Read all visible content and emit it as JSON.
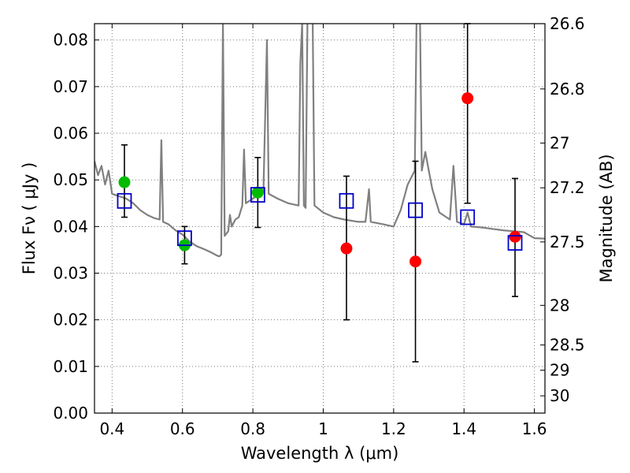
{
  "chart_data": {
    "type": "scatter",
    "title": "",
    "xlabel": "Wavelength  λ (μm)",
    "ylabel": "Flux  Fν  ( μJy )",
    "y2label": "Magnitude (AB)",
    "xlim": [
      0.35,
      1.63
    ],
    "ylim": [
      0.0,
      0.0835
    ],
    "grid": true,
    "x_ticks": [
      0.4,
      0.6,
      0.8,
      1.0,
      1.2,
      1.4,
      1.6
    ],
    "x_tick_labels": [
      "0.4",
      "0.6",
      "0.8",
      "1",
      "1.2",
      "1.4",
      "1.6"
    ],
    "y_ticks": [
      0.0,
      0.01,
      0.02,
      0.03,
      0.04,
      0.05,
      0.06,
      0.07,
      0.08
    ],
    "y_tick_labels": [
      "0.00",
      "0.01",
      "0.02",
      "0.03",
      "0.04",
      "0.05",
      "0.06",
      "0.07",
      "0.08"
    ],
    "y2_ticks": [
      {
        "label": "26.6",
        "flux": 0.0835
      },
      {
        "label": "26.8",
        "flux": 0.0695
      },
      {
        "label": "27",
        "flux": 0.0579
      },
      {
        "label": "27.2",
        "flux": 0.0483
      },
      {
        "label": "27.5",
        "flux": 0.0367
      },
      {
        "label": "28",
        "flux": 0.0231
      },
      {
        "label": "28.5",
        "flux": 0.0146
      },
      {
        "label": "29",
        "flux": 0.0092
      },
      {
        "label": "30",
        "flux": 0.0037
      }
    ],
    "series": [
      {
        "kind": "model_sed",
        "color": "#808080",
        "points": [
          [
            0.35,
            0.054
          ],
          [
            0.36,
            0.051
          ],
          [
            0.37,
            0.053
          ],
          [
            0.38,
            0.049
          ],
          [
            0.39,
            0.052
          ],
          [
            0.4,
            0.047
          ],
          [
            0.42,
            0.0465
          ],
          [
            0.44,
            0.046
          ],
          [
            0.46,
            0.045
          ],
          [
            0.48,
            0.0435
          ],
          [
            0.5,
            0.0425
          ],
          [
            0.52,
            0.0418
          ],
          [
            0.535,
            0.0415
          ],
          [
            0.54,
            0.0585
          ],
          [
            0.545,
            0.041
          ],
          [
            0.56,
            0.0405
          ],
          [
            0.58,
            0.0392
          ],
          [
            0.6,
            0.0383
          ],
          [
            0.62,
            0.0368
          ],
          [
            0.64,
            0.0358
          ],
          [
            0.66,
            0.0352
          ],
          [
            0.68,
            0.0345
          ],
          [
            0.7,
            0.0337
          ],
          [
            0.705,
            0.0336
          ],
          [
            0.71,
            0.034
          ],
          [
            0.715,
            0.0836
          ],
          [
            0.72,
            0.038
          ],
          [
            0.73,
            0.039
          ],
          [
            0.735,
            0.0425
          ],
          [
            0.74,
            0.04
          ],
          [
            0.75,
            0.0415
          ],
          [
            0.76,
            0.042
          ],
          [
            0.77,
            0.0445
          ],
          [
            0.775,
            0.0565
          ],
          [
            0.78,
            0.045
          ],
          [
            0.8,
            0.046
          ],
          [
            0.83,
            0.0475
          ],
          [
            0.84,
            0.08
          ],
          [
            0.845,
            0.047
          ],
          [
            0.87,
            0.046
          ],
          [
            0.9,
            0.045
          ],
          [
            0.93,
            0.0445
          ],
          [
            0.935,
            0.075
          ],
          [
            0.94,
            0.0836
          ],
          [
            0.945,
            0.0445
          ],
          [
            0.95,
            0.044
          ],
          [
            0.955,
            0.0836
          ],
          [
            0.96,
            0.0836
          ],
          [
            0.965,
            0.0836
          ],
          [
            0.97,
            0.0836
          ],
          [
            0.975,
            0.0445
          ],
          [
            1.0,
            0.043
          ],
          [
            1.03,
            0.042
          ],
          [
            1.06,
            0.0415
          ],
          [
            1.1,
            0.041
          ],
          [
            1.12,
            0.041
          ],
          [
            1.13,
            0.048
          ],
          [
            1.135,
            0.041
          ],
          [
            1.17,
            0.0405
          ],
          [
            1.2,
            0.04
          ],
          [
            1.22,
            0.0435
          ],
          [
            1.24,
            0.049
          ],
          [
            1.26,
            0.052
          ],
          [
            1.265,
            0.0836
          ],
          [
            1.27,
            0.0836
          ],
          [
            1.275,
            0.0836
          ],
          [
            1.28,
            0.052
          ],
          [
            1.29,
            0.056
          ],
          [
            1.3,
            0.052
          ],
          [
            1.31,
            0.048
          ],
          [
            1.33,
            0.043
          ],
          [
            1.36,
            0.0415
          ],
          [
            1.37,
            0.053
          ],
          [
            1.38,
            0.041
          ],
          [
            1.4,
            0.0405
          ],
          [
            1.41,
            0.043
          ],
          [
            1.42,
            0.04
          ],
          [
            1.45,
            0.0398
          ],
          [
            1.48,
            0.0395
          ],
          [
            1.51,
            0.0392
          ],
          [
            1.54,
            0.039
          ],
          [
            1.57,
            0.0388
          ],
          [
            1.6,
            0.0375
          ],
          [
            1.63,
            0.0374
          ]
        ]
      },
      {
        "kind": "model_band_flux",
        "marker": "open-square",
        "color": "#0000cc",
        "points": [
          [
            0.435,
            0.0455
          ],
          [
            0.606,
            0.0375
          ],
          [
            0.814,
            0.0468
          ],
          [
            1.066,
            0.0455
          ],
          [
            1.262,
            0.0435
          ],
          [
            1.41,
            0.042
          ],
          [
            1.545,
            0.0365
          ]
        ]
      },
      {
        "kind": "observed_flux",
        "marker": "filled-circle",
        "color": "#00bb00",
        "points": [
          [
            0.435,
            0.0495
          ],
          [
            0.606,
            0.036
          ],
          [
            0.814,
            0.0473
          ]
        ]
      },
      {
        "kind": "observed_flux",
        "marker": "filled-circle",
        "color": "#ff0000",
        "points": [
          [
            1.066,
            0.0353
          ],
          [
            1.262,
            0.0325
          ],
          [
            1.41,
            0.0675
          ],
          [
            1.545,
            0.0378
          ]
        ]
      },
      {
        "kind": "error_bars",
        "color": "#000000",
        "bars": [
          {
            "x": 0.435,
            "low": 0.042,
            "high": 0.0575
          },
          {
            "x": 0.606,
            "low": 0.032,
            "high": 0.04
          },
          {
            "x": 0.814,
            "low": 0.0398,
            "high": 0.0548
          },
          {
            "x": 1.066,
            "low": 0.02,
            "high": 0.0508
          },
          {
            "x": 1.262,
            "low": 0.011,
            "high": 0.054
          },
          {
            "x": 1.41,
            "low": 0.045,
            "high": 0.0835
          },
          {
            "x": 1.545,
            "low": 0.025,
            "high": 0.0503
          }
        ]
      }
    ]
  }
}
